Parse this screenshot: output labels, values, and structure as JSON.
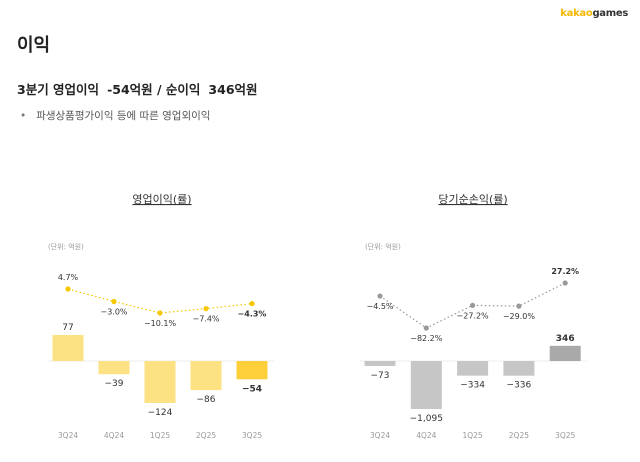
{
  "logo": {
    "kakao": "kakao",
    "games": "games"
  },
  "title": "이익",
  "summary": {
    "label": "3분기 영업이익",
    "op_value": "-54억원 / 순이익",
    "net_value": "346억원"
  },
  "bullet": "파생상품평가이익 등에 따른 영업외이익",
  "chart_data": [
    {
      "type": "bar",
      "title": "영업이익(률)",
      "unit_label": "(단위: 억원)",
      "categories": [
        "3Q24",
        "4Q24",
        "1Q25",
        "2Q25",
        "3Q25"
      ],
      "values": [
        77,
        -39,
        -124,
        -86,
        -54
      ],
      "value_labels": [
        "77",
        "-39",
        "-124",
        "-86",
        "-54"
      ],
      "margin": [
        4.7,
        -3.0,
        -10.1,
        -7.4,
        -4.3
      ],
      "margin_labels": [
        "4.7%",
        "-3.0%",
        "-10.1%",
        "-7.4%",
        "-4.3%"
      ],
      "colors": {
        "bar": "#fde283",
        "highlight": "#fdd03a",
        "line": "#f5c800"
      }
    },
    {
      "type": "bar",
      "title": "당기순손익(률)",
      "unit_label": "(단위: 억원)",
      "categories": [
        "3Q24",
        "4Q24",
        "1Q25",
        "2Q25",
        "3Q25"
      ],
      "values": [
        -73,
        -1095,
        -334,
        -336,
        346
      ],
      "value_labels": [
        "-73",
        "-1,095",
        "-334",
        "-336",
        "346"
      ],
      "margin": [
        -4.5,
        -82.2,
        -27.2,
        -29.0,
        27.2
      ],
      "margin_labels": [
        "-4.5%",
        "-82.2%",
        "-27.2%",
        "-29.0%",
        "27.2%"
      ],
      "colors": {
        "bar": "#c6c6c6",
        "highlight": "#a9a9a9",
        "line": "#999999"
      }
    }
  ]
}
